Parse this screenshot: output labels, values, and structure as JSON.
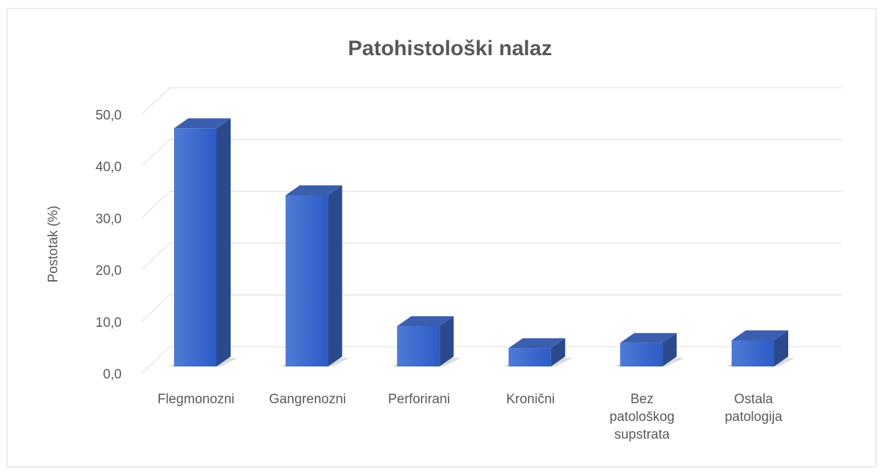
{
  "chart_data": {
    "type": "bar",
    "title": "Patohistološki nalaz",
    "y_label": "Postotak (%)",
    "categories": [
      "Flegmonozni",
      "Gangrenozni",
      "Perforirani",
      "Kronični",
      "Bez patološkog supstrata",
      "Ostala patologija"
    ],
    "values": [
      45.5,
      32.7,
      7.7,
      3.5,
      4.5,
      5.0
    ],
    "color": "#4472c4",
    "ylim": [
      0,
      50
    ],
    "yticks": [
      {
        "value": 0,
        "label": "0,0"
      },
      {
        "value": 10,
        "label": "10,0"
      },
      {
        "value": 20,
        "label": "20,0"
      },
      {
        "value": 30,
        "label": "30,0"
      },
      {
        "value": 40,
        "label": "40,0"
      },
      {
        "value": 50,
        "label": "50,0"
      }
    ],
    "grid": true
  }
}
